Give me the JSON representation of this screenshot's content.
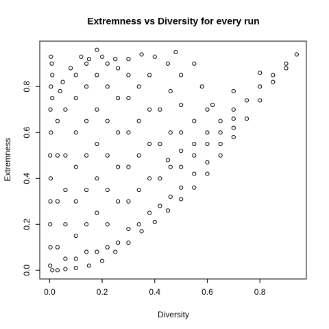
{
  "chart_data": {
    "type": "scatter",
    "title": "Extremness vs Diversity for every run",
    "x_label": "Diversity",
    "y_label": "Extremness",
    "color": "#000000",
    "xlim": [
      -0.0376,
      0.977
    ],
    "ylim": [
      -0.038,
      0.998
    ],
    "xticks": [
      {
        "value": 0,
        "label": "0.0"
      },
      0.2,
      0.4,
      0.6,
      0.8
    ],
    "yticks": [
      {
        "value": 0,
        "label": "0.0"
      },
      0.2,
      0.4,
      0.6,
      0.8
    ],
    "x": [
      0.005,
      0.008,
      0.01,
      0.005,
      0.01,
      0.003,
      0.005,
      0.002,
      0.004,
      0.003,
      0.002,
      0.003,
      0.002,
      0.01,
      0.03,
      0.06,
      0.1,
      0.15,
      0.2,
      0.25,
      0.3,
      0.35,
      0.4,
      0.45,
      0.5,
      0.55,
      0.6,
      0.65,
      0.7,
      0.75,
      0.8,
      0.85,
      0.9,
      0.94,
      0.6,
      0.65,
      0.7,
      0.75,
      0.8,
      0.85,
      0.9,
      0.55,
      0.5,
      0.45,
      0.7,
      0.8,
      0.62,
      0.58,
      0.5,
      0.45,
      0.55,
      0.48,
      0.4,
      0.35,
      0.3,
      0.25,
      0.2,
      0.18,
      0.15,
      0.12,
      0.08,
      0.05,
      0.04,
      0.03,
      0.03,
      0.03,
      0.03,
      0.06,
      0.06,
      0.06,
      0.06,
      0.06,
      0.1,
      0.1,
      0.1,
      0.1,
      0.1,
      0.1,
      0.1,
      0.14,
      0.14,
      0.14,
      0.14,
      0.14,
      0.14,
      0.14,
      0.18,
      0.18,
      0.18,
      0.18,
      0.18,
      0.18,
      0.22,
      0.22,
      0.22,
      0.22,
      0.22,
      0.22,
      0.22,
      0.26,
      0.26,
      0.26,
      0.26,
      0.26,
      0.26,
      0.3,
      0.3,
      0.3,
      0.3,
      0.3,
      0.3,
      0.34,
      0.34,
      0.34,
      0.34,
      0.34,
      0.38,
      0.38,
      0.38,
      0.38,
      0.38,
      0.42,
      0.42,
      0.42,
      0.42,
      0.46,
      0.46,
      0.46,
      0.46,
      0.5,
      0.5,
      0.5,
      0.5,
      0.55,
      0.55,
      0.55,
      0.6,
      0.6,
      0.6,
      0.65,
      0.65,
      0.7,
      0.7
    ],
    "values": [
      0.93,
      0.9,
      0.85,
      0.8,
      0.75,
      0.7,
      0.6,
      0.5,
      0.4,
      0.3,
      0.2,
      0.1,
      0.02,
      0,
      0,
      0.005,
      0.01,
      0.02,
      0.04,
      0.08,
      0.12,
      0.17,
      0.21,
      0.26,
      0.31,
      0.36,
      0.42,
      0.5,
      0.58,
      0.66,
      0.74,
      0.82,
      0.88,
      0.94,
      0.6,
      0.65,
      0.7,
      0.74,
      0.8,
      0.85,
      0.9,
      0.55,
      0.52,
      0.48,
      0.78,
      0.86,
      0.72,
      0.8,
      0.85,
      0.9,
      0.9,
      0.95,
      0.93,
      0.94,
      0.92,
      0.92,
      0.93,
      0.96,
      0.92,
      0.93,
      0.88,
      0.82,
      0.78,
      0.1,
      0.3,
      0.5,
      0.65,
      0.05,
      0.2,
      0.35,
      0.5,
      0.7,
      0.05,
      0.15,
      0.3,
      0.45,
      0.6,
      0.75,
      0.85,
      0.08,
      0.2,
      0.35,
      0.5,
      0.65,
      0.8,
      0.9,
      0.08,
      0.25,
      0.4,
      0.55,
      0.7,
      0.85,
      0.1,
      0.2,
      0.35,
      0.5,
      0.65,
      0.8,
      0.9,
      0.12,
      0.3,
      0.45,
      0.6,
      0.75,
      0.88,
      0.18,
      0.3,
      0.45,
      0.6,
      0.75,
      0.85,
      0.2,
      0.35,
      0.5,
      0.65,
      0.8,
      0.25,
      0.4,
      0.55,
      0.7,
      0.85,
      0.28,
      0.4,
      0.55,
      0.7,
      0.32,
      0.45,
      0.6,
      0.78,
      0.36,
      0.45,
      0.6,
      0.72,
      0.42,
      0.5,
      0.65,
      0.47,
      0.55,
      0.7,
      0.55,
      0.6,
      0.62,
      0.66
    ]
  }
}
